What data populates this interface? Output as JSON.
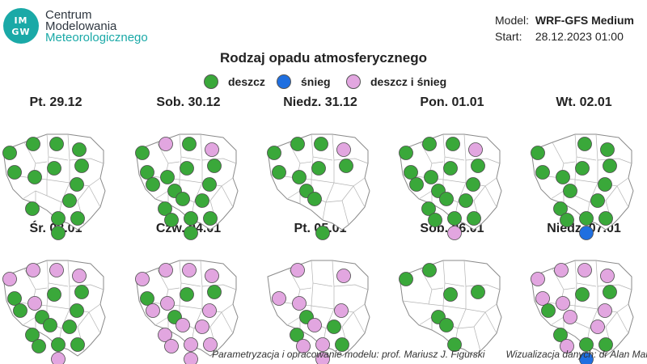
{
  "logo": {
    "badge_top": "IM",
    "badge_bottom": "GW",
    "line1": "Centrum",
    "line2": "Modelowania",
    "line3": "Meteorologicznego"
  },
  "meta": {
    "model_label": "Model:",
    "model_value": "WRF-GFS Medium",
    "start_label": "Start:",
    "start_value": "28.12.2023 01:00"
  },
  "title": "Rodzaj opadu atmosferycznego",
  "colors": {
    "rain": "#3aa83a",
    "snow": "#1f6fe0",
    "mixed": "#e2a6e0",
    "border": "#8a8a8a"
  },
  "legend": [
    {
      "key": "rain",
      "label": "deszcz"
    },
    {
      "key": "snow",
      "label": "śnieg"
    },
    {
      "key": "mixed",
      "label": "deszcz i śnieg"
    }
  ],
  "days": [
    {
      "label": "Pt. 29.12",
      "points": [
        [
          "P1",
          "rain"
        ],
        [
          "P2",
          "rain"
        ],
        [
          "P3",
          "rain"
        ],
        [
          "P4",
          "rain"
        ],
        [
          "P5",
          "rain"
        ],
        [
          "P6",
          "rain"
        ],
        [
          "P7",
          "rain"
        ],
        [
          "P8",
          "rain"
        ],
        [
          "P11",
          "rain"
        ],
        [
          "P12",
          "rain"
        ],
        [
          "P14",
          "rain"
        ],
        [
          "P16",
          "rain"
        ],
        [
          "P17",
          "rain"
        ],
        [
          "P18",
          "rain"
        ]
      ]
    },
    {
      "label": "Sob. 30.12",
      "points": [
        [
          "P1",
          "rain"
        ],
        [
          "P2",
          "mixed"
        ],
        [
          "P3",
          "rain"
        ],
        [
          "P4",
          "mixed"
        ],
        [
          "P5",
          "rain"
        ],
        [
          "P6",
          "rain"
        ],
        [
          "P7",
          "rain"
        ],
        [
          "P8",
          "rain"
        ],
        [
          "P9",
          "rain"
        ],
        [
          "P10",
          "rain"
        ],
        [
          "P11",
          "rain"
        ],
        [
          "P12",
          "rain"
        ],
        [
          "P13",
          "rain"
        ],
        [
          "P14",
          "rain"
        ],
        [
          "P15",
          "rain"
        ],
        [
          "P16",
          "rain"
        ],
        [
          "P17",
          "rain"
        ],
        [
          "P18",
          "rain"
        ]
      ]
    },
    {
      "label": "Niedz. 31.12",
      "points": [
        [
          "P1",
          "rain"
        ],
        [
          "P2",
          "rain"
        ],
        [
          "P3",
          "rain"
        ],
        [
          "P4",
          "mixed"
        ],
        [
          "P5",
          "rain"
        ],
        [
          "P6",
          "rain"
        ],
        [
          "P7",
          "rain"
        ],
        [
          "P8",
          "rain"
        ],
        [
          "P10",
          "rain"
        ],
        [
          "P13",
          "rain"
        ],
        [
          "P18",
          "rain"
        ]
      ]
    },
    {
      "label": "Pon. 01.01",
      "points": [
        [
          "P1",
          "rain"
        ],
        [
          "P2",
          "rain"
        ],
        [
          "P3",
          "rain"
        ],
        [
          "P4",
          "mixed"
        ],
        [
          "P5",
          "rain"
        ],
        [
          "P6",
          "rain"
        ],
        [
          "P7",
          "rain"
        ],
        [
          "P8",
          "rain"
        ],
        [
          "P9",
          "rain"
        ],
        [
          "P10",
          "rain"
        ],
        [
          "P11",
          "rain"
        ],
        [
          "P12",
          "rain"
        ],
        [
          "P13",
          "rain"
        ],
        [
          "P14",
          "rain"
        ],
        [
          "P15",
          "rain"
        ],
        [
          "P16",
          "rain"
        ],
        [
          "P17",
          "rain"
        ],
        [
          "P18",
          "mixed"
        ]
      ]
    },
    {
      "label": "Wt. 02.01",
      "points": [
        [
          "P1",
          "rain"
        ],
        [
          "P3",
          "rain"
        ],
        [
          "P4",
          "rain"
        ],
        [
          "P5",
          "rain"
        ],
        [
          "P6",
          "rain"
        ],
        [
          "P7",
          "rain"
        ],
        [
          "P8",
          "rain"
        ],
        [
          "P10",
          "rain"
        ],
        [
          "P11",
          "rain"
        ],
        [
          "P12",
          "rain"
        ],
        [
          "P14",
          "rain"
        ],
        [
          "P15",
          "rain"
        ],
        [
          "P16",
          "rain"
        ],
        [
          "P17",
          "rain"
        ],
        [
          "P18",
          "snow"
        ]
      ]
    },
    {
      "label": "Śr. 03.01",
      "points": [
        [
          "P1",
          "mixed"
        ],
        [
          "P2",
          "mixed"
        ],
        [
          "P3",
          "mixed"
        ],
        [
          "P4",
          "mixed"
        ],
        [
          "P5",
          "rain"
        ],
        [
          "P6",
          "rain"
        ],
        [
          "P7",
          "mixed"
        ],
        [
          "P8",
          "rain"
        ],
        [
          "P9",
          "rain"
        ],
        [
          "P10",
          "rain"
        ],
        [
          "P11",
          "rain"
        ],
        [
          "P12",
          "rain"
        ],
        [
          "P13",
          "rain"
        ],
        [
          "P14",
          "rain"
        ],
        [
          "P15",
          "rain"
        ],
        [
          "P16",
          "rain"
        ],
        [
          "P17",
          "rain"
        ],
        [
          "P18",
          "mixed"
        ]
      ]
    },
    {
      "label": "Czw. 04.01",
      "points": [
        [
          "P1",
          "mixed"
        ],
        [
          "P2",
          "mixed"
        ],
        [
          "P3",
          "mixed"
        ],
        [
          "P4",
          "mixed"
        ],
        [
          "P5",
          "rain"
        ],
        [
          "P6",
          "rain"
        ],
        [
          "P7",
          "mixed"
        ],
        [
          "P8",
          "rain"
        ],
        [
          "P9",
          "mixed"
        ],
        [
          "P10",
          "rain"
        ],
        [
          "P11",
          "mixed"
        ],
        [
          "P12",
          "mixed"
        ],
        [
          "P13",
          "mixed"
        ],
        [
          "P14",
          "mixed"
        ],
        [
          "P15",
          "mixed"
        ],
        [
          "P16",
          "mixed"
        ],
        [
          "P17",
          "mixed"
        ],
        [
          "P18",
          "mixed"
        ]
      ]
    },
    {
      "label": "Pt. 05.01",
      "points": [
        [
          "P2",
          "mixed"
        ],
        [
          "P4",
          "mixed"
        ],
        [
          "P6",
          "mixed"
        ],
        [
          "P7",
          "mixed"
        ],
        [
          "P10",
          "rain"
        ],
        [
          "P11",
          "mixed"
        ],
        [
          "P12",
          "rain"
        ],
        [
          "P13",
          "mixed"
        ],
        [
          "P14",
          "rain"
        ],
        [
          "P15",
          "mixed"
        ],
        [
          "P16",
          "mixed"
        ],
        [
          "P17",
          "rain"
        ],
        [
          "P18",
          "mixed"
        ]
      ]
    },
    {
      "label": "Sob. 06.01",
      "points": [
        [
          "P1",
          "rain"
        ],
        [
          "P2",
          "rain"
        ],
        [
          "P5",
          "rain"
        ],
        [
          "P8",
          "rain"
        ],
        [
          "P10",
          "rain"
        ],
        [
          "P13",
          "rain"
        ],
        [
          "P16",
          "rain"
        ]
      ]
    },
    {
      "label": "Niedz. 07.01",
      "points": [
        [
          "P1",
          "mixed"
        ],
        [
          "P2",
          "mixed"
        ],
        [
          "P3",
          "mixed"
        ],
        [
          "P4",
          "mixed"
        ],
        [
          "P5",
          "rain"
        ],
        [
          "P6",
          "mixed"
        ],
        [
          "P7",
          "mixed"
        ],
        [
          "P8",
          "rain"
        ],
        [
          "P9",
          "rain"
        ],
        [
          "P10",
          "mixed"
        ],
        [
          "P11",
          "mixed"
        ],
        [
          "P12",
          "rain"
        ],
        [
          "P14",
          "mixed"
        ],
        [
          "P15",
          "mixed"
        ],
        [
          "P16",
          "rain"
        ],
        [
          "P17",
          "rain"
        ],
        [
          "P18",
          "snow"
        ]
      ]
    }
  ],
  "footer": {
    "model_credit": "Parametryzacja i opracowanie modelu: prof. Mariusz J. Figurski",
    "viz_credit": "Wizualizacja danych: dr Alan Mandal"
  }
}
